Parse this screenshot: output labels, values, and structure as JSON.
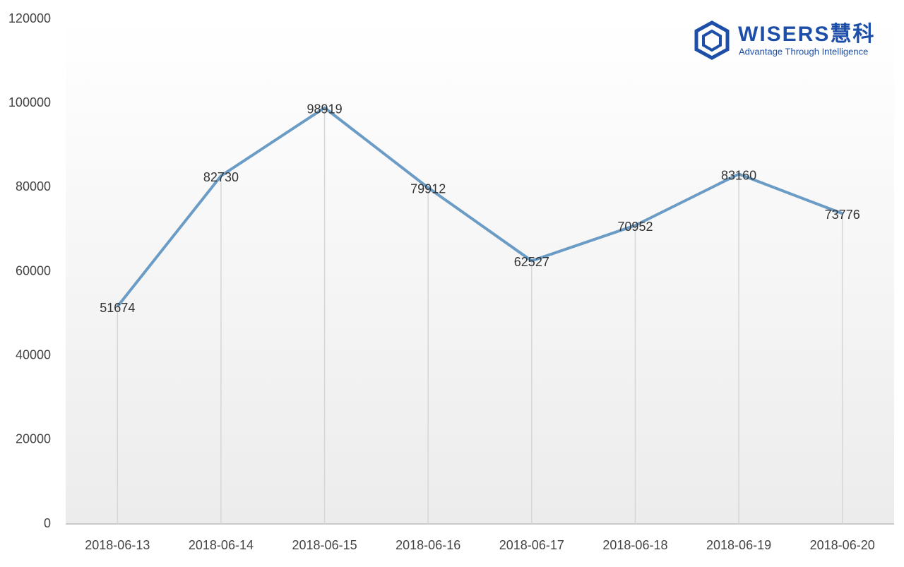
{
  "chart_data": {
    "type": "line",
    "logo": {
      "name": "WISERS慧科",
      "tagline": "Advantage Through Intelligence"
    },
    "x": [
      "2018-06-13",
      "2018-06-14",
      "2018-06-15",
      "2018-06-16",
      "2018-06-17",
      "2018-06-18",
      "2018-06-19",
      "2018-06-20"
    ],
    "series": [
      {
        "color": "#6a9cc6",
        "values": [
          51674,
          82730,
          98919,
          79912,
          62527,
          70952,
          83160,
          73776
        ]
      }
    ],
    "ylim": [
      0,
      120000
    ],
    "yticks": [
      0,
      20000,
      40000,
      60000,
      80000,
      100000,
      120000
    ],
    "grid": false,
    "data_labels": true,
    "drop_lines": true
  }
}
